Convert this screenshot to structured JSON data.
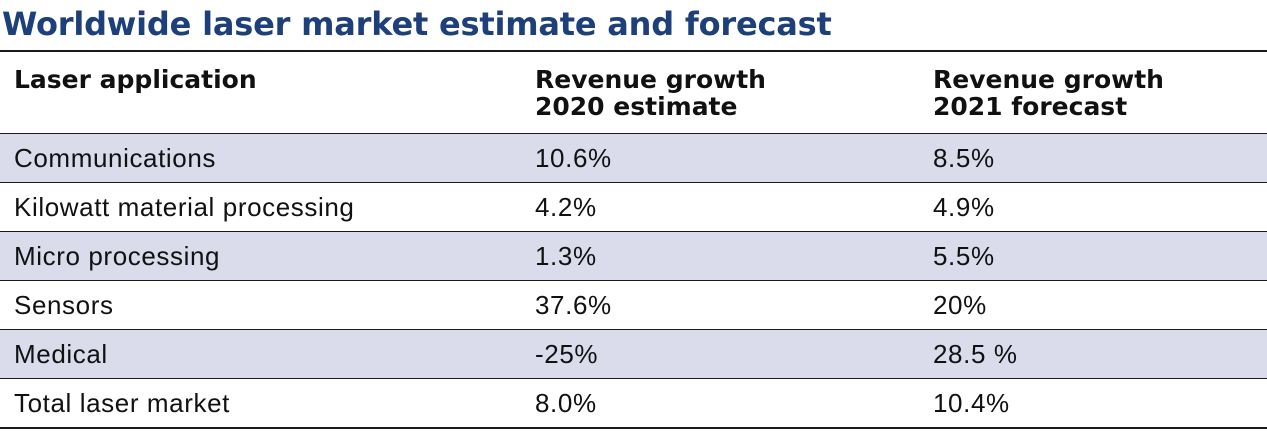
{
  "title": "Worldwide laser market estimate and forecast",
  "table": {
    "headers": [
      "Laser application",
      "Revenue growth\n2020 estimate",
      "Revenue growth\n2021 forecast"
    ],
    "rows": [
      [
        "Communications",
        "10.6%",
        "8.5%"
      ],
      [
        "Kilowatt material processing",
        "4.2%",
        "4.9%"
      ],
      [
        "Micro processing",
        "1.3%",
        "5.5%"
      ],
      [
        "Sensors",
        "37.6%",
        "20%"
      ],
      [
        "Medical",
        "-25%",
        "28.5 %"
      ],
      [
        "Total laser market",
        "8.0%",
        "10.4%"
      ]
    ]
  },
  "colors": {
    "title": "#1d3f7a",
    "row_shade": "#dadcec",
    "rule": "#1a1a1a"
  }
}
